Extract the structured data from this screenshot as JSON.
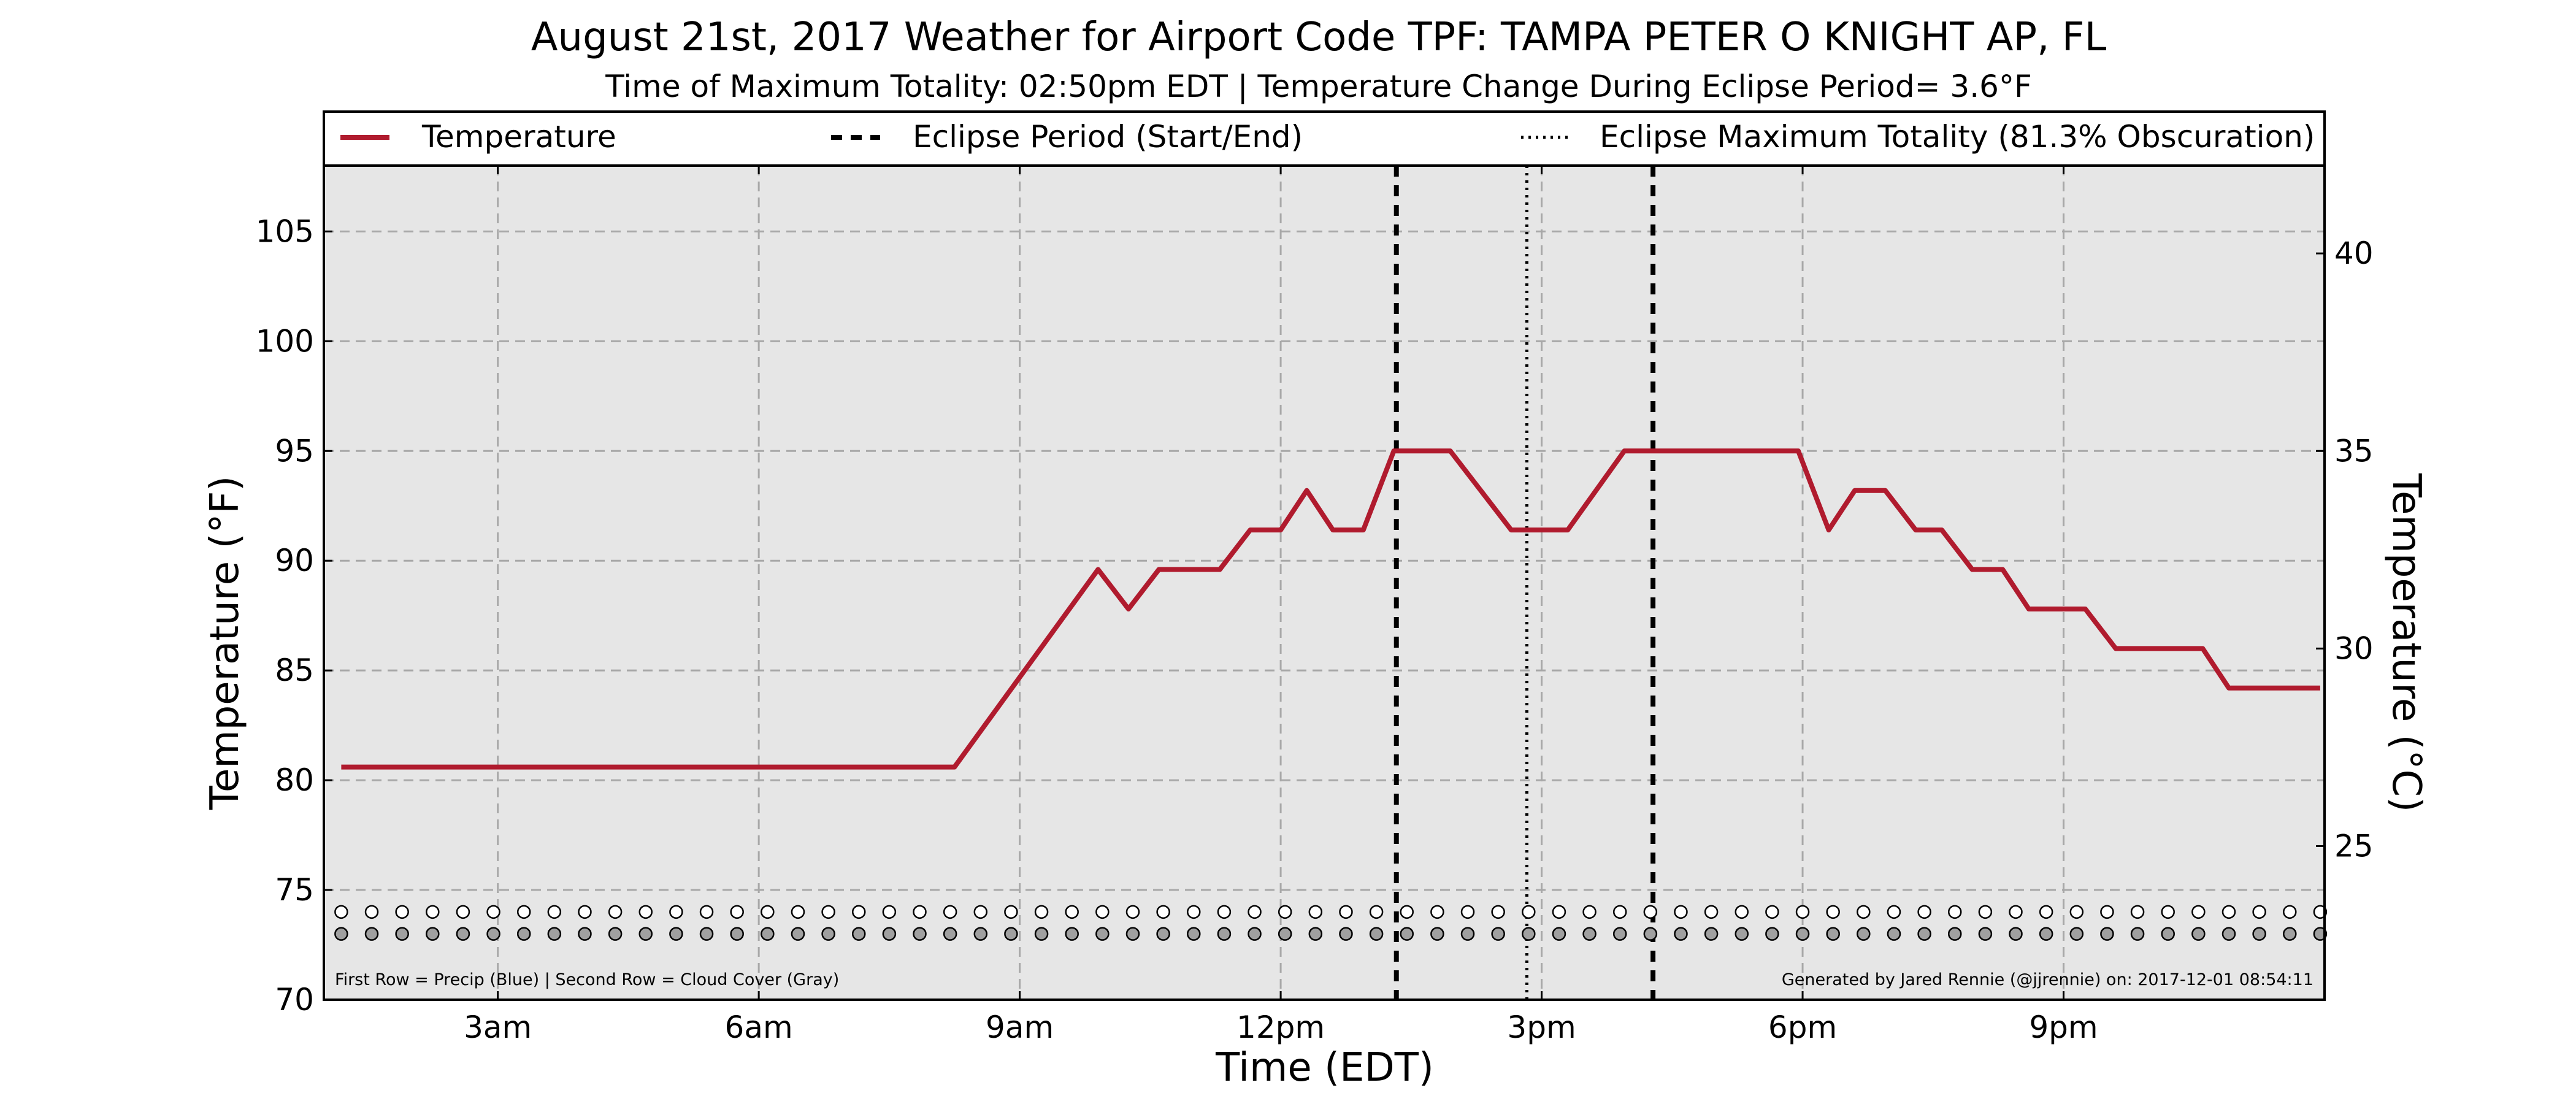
{
  "chart_data": {
    "type": "line",
    "title": "August 21st, 2017 Weather for Airport Code TPF: TAMPA PETER O KNIGHT AP, FL",
    "subtitle": "Time of Maximum Totality: 02:50pm EDT | Temperature Change During Eclipse Period= 3.6°F",
    "xlabel": "Time (EDT)",
    "ylabel": "Temperature (°F)",
    "ylabel_right": "Temperature (°C)",
    "x_unit": "hours after midnight (EDT)",
    "xlim": [
      1.0,
      24.0
    ],
    "ylim": [
      70,
      108
    ],
    "x_ticks": [
      {
        "x": 3,
        "label": "3am"
      },
      {
        "x": 6,
        "label": "6am"
      },
      {
        "x": 9,
        "label": "9am"
      },
      {
        "x": 12,
        "label": "12pm"
      },
      {
        "x": 15,
        "label": "3pm"
      },
      {
        "x": 18,
        "label": "6pm"
      },
      {
        "x": 21,
        "label": "9pm"
      }
    ],
    "y_ticks": [
      {
        "y": 70,
        "label": "70"
      },
      {
        "y": 75,
        "label": "75"
      },
      {
        "y": 80,
        "label": "80"
      },
      {
        "y": 85,
        "label": "85"
      },
      {
        "y": 90,
        "label": "90"
      },
      {
        "y": 95,
        "label": "95"
      },
      {
        "y": 100,
        "label": "100"
      },
      {
        "y": 105,
        "label": "105"
      }
    ],
    "y_ticks_right": [
      {
        "c": 25,
        "label": "25"
      },
      {
        "c": 30,
        "label": "30"
      },
      {
        "c": 35,
        "label": "35"
      },
      {
        "c": 40,
        "label": "40"
      }
    ],
    "grid": true,
    "background": "#e6e6e6",
    "series": [
      {
        "name": "Temperature",
        "color": "#b01b2e",
        "x": [
          1.2,
          8.25,
          9.9,
          10.25,
          10.6,
          11.3,
          11.65,
          12.0,
          12.3,
          12.6,
          12.95,
          13.3,
          13.95,
          14.65,
          14.95,
          15.3,
          15.95,
          16.3,
          17.95,
          18.3,
          18.6,
          18.95,
          19.3,
          19.6,
          19.95,
          20.3,
          20.6,
          20.95,
          21.25,
          21.6,
          22.6,
          22.9,
          23.95
        ],
        "y": [
          80.6,
          80.6,
          89.6,
          87.8,
          89.6,
          89.6,
          91.4,
          91.4,
          93.2,
          91.4,
          91.4,
          95.0,
          95.0,
          91.4,
          91.4,
          91.4,
          95.0,
          95.0,
          95.0,
          91.4,
          93.2,
          93.2,
          91.4,
          91.4,
          89.6,
          89.6,
          87.8,
          87.8,
          87.8,
          86.0,
          86.0,
          84.2,
          84.2
        ]
      }
    ],
    "eclipse_start": 13.33,
    "eclipse_end": 16.28,
    "eclipse_max": 14.83,
    "legend": {
      "placement": "top",
      "items": [
        {
          "label": "Temperature",
          "style": "solid",
          "color": "#b01b2e"
        },
        {
          "label": "Eclipse Period (Start/End)",
          "style": "dashed",
          "color": "#000000"
        },
        {
          "label": "Eclipse Maximum Totality (81.3% Obscuration)",
          "style": "dotted",
          "color": "#000000"
        }
      ]
    },
    "markers": {
      "precip_row_y": 74.0,
      "cloud_row_y": 73.0,
      "x_start": 1.2,
      "x_end": 23.95,
      "count": 66,
      "precip_color": "#ffffff",
      "cloud_color": "#a0a0a0"
    },
    "footnote_left": "First Row = Precip (Blue) | Second Row = Cloud Cover (Gray)",
    "footnote_right": "Generated by Jared Rennie (@jjrennie) on: 2017-12-01 08:54:11"
  }
}
